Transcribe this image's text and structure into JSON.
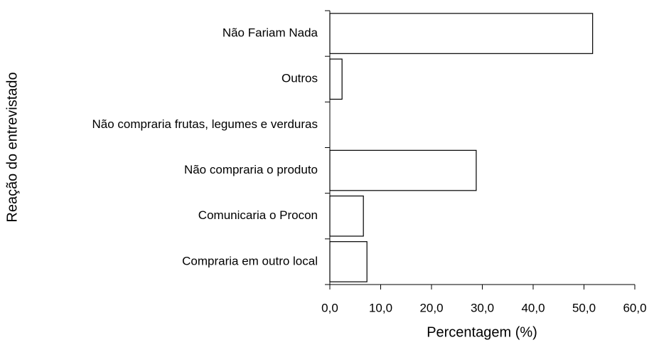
{
  "chart_data": {
    "type": "barh",
    "xlabel": "Percentagem (%)",
    "ylabel": "Reação do entrevistado",
    "categories": [
      "Não Fariam Nada",
      "Outros",
      "Não compraria frutas, legumes e verduras",
      "Não compraria o produto",
      "Comunicaria o Procon",
      "Compraria em outro local"
    ],
    "values": [
      51.7,
      2.4,
      0,
      28.8,
      6.6,
      7.3
    ],
    "color": "#ffffff",
    "xlim": [
      0,
      60
    ],
    "xticks": [
      {
        "value": 0,
        "label": "0,0"
      },
      {
        "value": 10,
        "label": "10,0"
      },
      {
        "value": 20,
        "label": "20,0"
      },
      {
        "value": 30,
        "label": "30,0"
      },
      {
        "value": 40,
        "label": "40,0"
      },
      {
        "value": 50,
        "label": "50,0"
      },
      {
        "value": 60,
        "label": "60,0"
      }
    ],
    "grid": false
  }
}
